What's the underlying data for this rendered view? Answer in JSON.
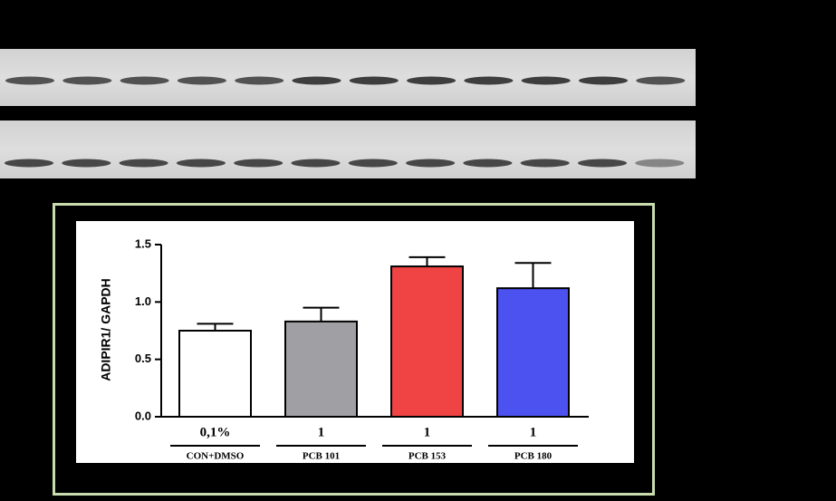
{
  "chart_data": {
    "type": "bar",
    "y_label": "ADIPIR1/ GAPDH",
    "categories": [
      "0,1%",
      "1",
      "1",
      "1"
    ],
    "groups": [
      "CON+DMSO",
      "PCB 101",
      "PCB 153",
      "PCB 180"
    ],
    "values": [
      0.75,
      0.83,
      1.31,
      1.12
    ],
    "errors": [
      0.06,
      0.12,
      0.08,
      0.22
    ],
    "colors": [
      "#ffffff",
      "#a0a0a4",
      "#f04343",
      "#4b52ef"
    ],
    "ylim": [
      0,
      1.5
    ],
    "yticks": [
      {
        "value": 0,
        "label": "0.0"
      },
      0.5,
      {
        "value": 1,
        "label": "1.0"
      },
      1.5
    ]
  }
}
